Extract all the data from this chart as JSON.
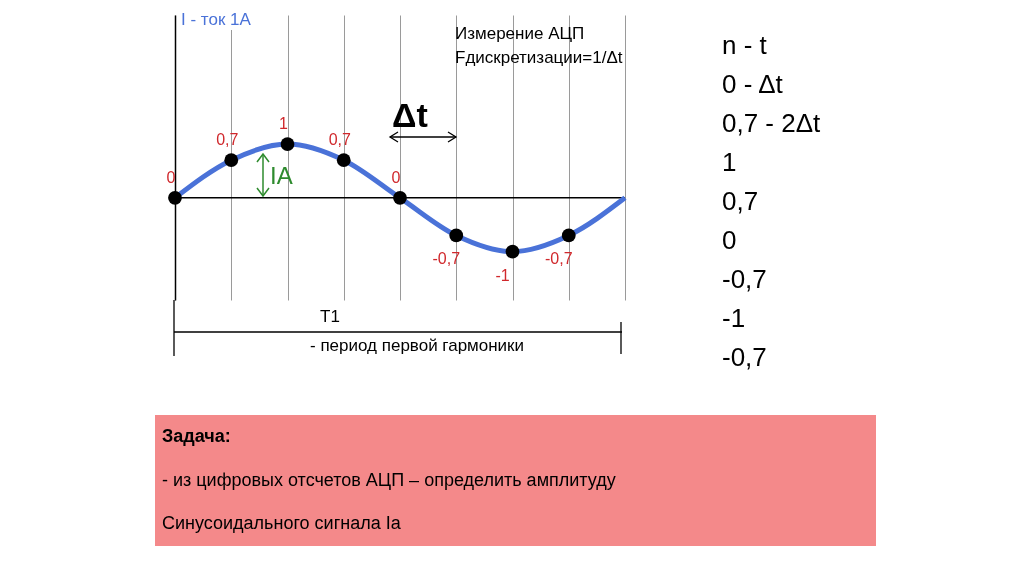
{
  "chart_data": {
    "type": "line",
    "title": "Измерение АЦП",
    "subtitle": "Fдискретизации=1/Δt",
    "categories": [
      null,
      null,
      null,
      null,
      null,
      null,
      null,
      null,
      null
    ],
    "series": [
      {
        "color": "#4a72d8",
        "marker": "circle",
        "values": [
          0,
          0.7,
          1,
          0.7,
          0,
          -0.7,
          -1,
          -0.7,
          0
        ],
        "value_labels": [
          "0",
          "0,7",
          "1",
          "0,7",
          "0",
          "-0,7",
          "-1",
          "-0,7",
          null
        ]
      }
    ],
    "tick_labels": false,
    "grid": "x",
    "annotations": [
      "Δt",
      "IA",
      "T1",
      "- период первой гармоники",
      "n - t",
      "0 - Δt",
      "0,7 - 2Δt",
      "1",
      "0,7",
      "0",
      "-0,7",
      "-1",
      "-0,7",
      "Задача:",
      "- из цифровых отсчетов АЦП – определить амплитуду",
      "Синусоидального сигнала Ia",
      "I - ток 1А"
    ]
  }
}
